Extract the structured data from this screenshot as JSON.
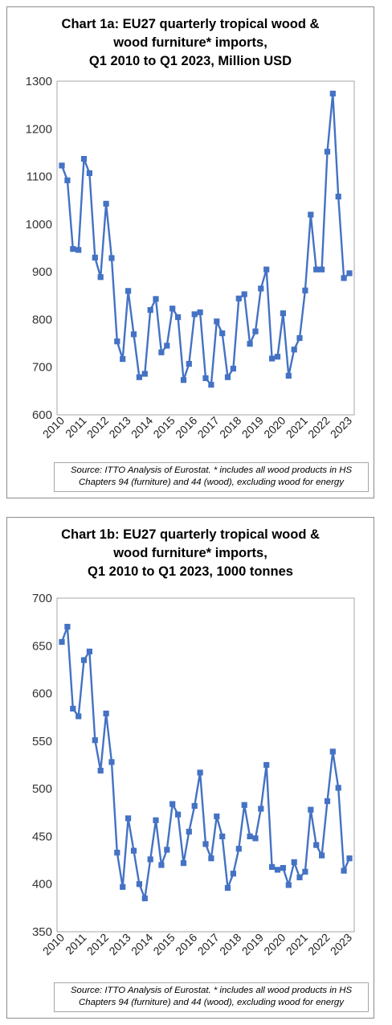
{
  "chart_data": [
    {
      "type": "line",
      "title_lines": [
        "Chart 1a: EU27 quarterly tropical wood &",
        "wood furniture* imports,",
        "Q1 2010 to Q1 2023, Million USD"
      ],
      "source_lines": [
        "Source: ITTO Analysis of Eurostat. * includes all wood products in HS",
        "Chapters 94 (furniture) and 44 (wood), excluding wood for energy"
      ],
      "xlabel": "",
      "ylabel": "",
      "ylim": [
        600,
        1300
      ],
      "yticks": [
        600,
        700,
        800,
        900,
        1000,
        1100,
        1200,
        1300
      ],
      "x_tick_labels": [
        "2010",
        "2011",
        "2012",
        "2013",
        "2014",
        "2015",
        "2016",
        "2017",
        "2018",
        "2019",
        "2020",
        "2021",
        "2022",
        "2023"
      ],
      "grid": false,
      "legend": "none",
      "series": [
        {
          "color": "#4472c4",
          "values": [
            1123,
            1092,
            948,
            946,
            1137,
            1107,
            930,
            889,
            1043,
            929,
            754,
            717,
            860,
            769,
            679,
            686,
            820,
            843,
            731,
            745,
            823,
            805,
            673,
            707,
            811,
            815,
            677,
            663,
            796,
            771,
            679,
            697,
            844,
            853,
            749,
            775,
            865,
            905,
            718,
            722,
            813,
            682,
            737,
            761,
            861,
            1020,
            905,
            905,
            1152,
            1274,
            1058,
            887,
            897
          ]
        }
      ]
    },
    {
      "type": "line",
      "title_lines": [
        "Chart 1b: EU27 quarterly tropical wood &",
        "wood furniture* imports,",
        "Q1 2010 to Q1 2023, 1000 tonnes"
      ],
      "source_lines": [
        "Source: ITTO Analysis of Eurostat. * includes all wood products in HS",
        "Chapters 94 (furniture) and 44 (wood), excluding wood for energy"
      ],
      "xlabel": "",
      "ylabel": "",
      "ylim": [
        350,
        700
      ],
      "yticks": [
        350,
        400,
        450,
        500,
        550,
        600,
        650,
        700
      ],
      "x_tick_labels": [
        "2010",
        "2011",
        "2012",
        "2013",
        "2014",
        "2015",
        "2016",
        "2017",
        "2018",
        "2019",
        "2020",
        "2021",
        "2022",
        "2023"
      ],
      "grid": false,
      "legend": "none",
      "series": [
        {
          "color": "#4472c4",
          "values": [
            654,
            670,
            584,
            576,
            635,
            644,
            551,
            519,
            579,
            528,
            433,
            397,
            469,
            435,
            400,
            385,
            426,
            467,
            420,
            436,
            484,
            473,
            422,
            455,
            482,
            517,
            442,
            427,
            471,
            450,
            396,
            411,
            437,
            483,
            450,
            448,
            479,
            525,
            418,
            415,
            417,
            399,
            423,
            407,
            413,
            478,
            441,
            430,
            487,
            539,
            501,
            414,
            427
          ]
        }
      ]
    }
  ]
}
